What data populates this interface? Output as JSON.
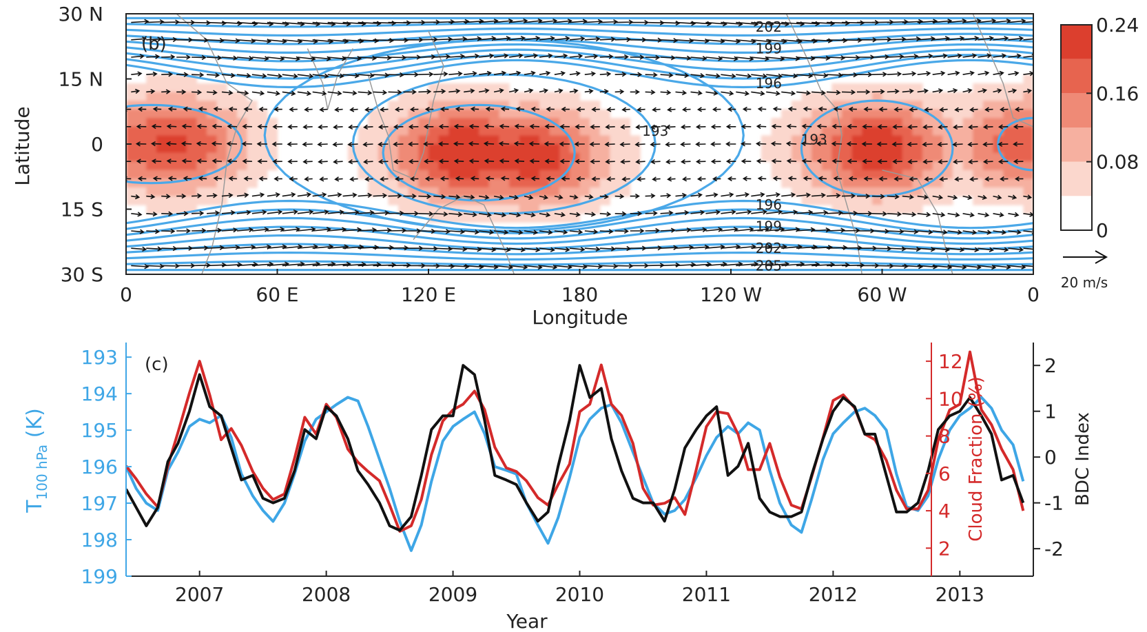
{
  "chart_data": [
    {
      "panel": "(b)",
      "type": "heatmap",
      "xlabel": "Longitude",
      "ylabel": "Latitude",
      "x_ticks": [
        "0",
        "60 E",
        "120 E",
        "180",
        "120 W",
        "60 W",
        "0"
      ],
      "x_tick_values": [
        0,
        60,
        120,
        180,
        240,
        300,
        360
      ],
      "y_ticks": [
        "30 N",
        "15 N",
        "0",
        "15 S",
        "30 S"
      ],
      "y_tick_values": [
        30,
        15,
        0,
        -15,
        -30
      ],
      "xlim": [
        0,
        360
      ],
      "ylim": [
        -30,
        30
      ],
      "colorbar": {
        "levels": [
          0,
          0.04,
          0.08,
          0.12,
          0.16,
          0.2,
          0.24
        ],
        "tick_labels": [
          "0",
          "0.08",
          "0.16",
          "0.24"
        ],
        "tick_values": [
          0,
          0.08,
          0.16,
          0.24
        ],
        "colors": [
          "#ffffff",
          "#fbd7cd",
          "#f6b0a0",
          "#ef8a76",
          "#e7644f",
          "#dc3f2e"
        ]
      },
      "cloud_maxima": [
        {
          "lon": 18,
          "lat": 0,
          "value": 0.16
        },
        {
          "lon": 135,
          "lat": -2,
          "value": 0.2
        },
        {
          "lon": 160,
          "lat": -3,
          "value": 0.18
        },
        {
          "lon": 298,
          "lat": -1,
          "value": 0.18
        },
        {
          "lon": 358,
          "lat": 0,
          "value": 0.14
        }
      ],
      "contour_color": "#4aa8e8",
      "contour_labels": [
        {
          "text": "202",
          "lon": 255,
          "lat": 27
        },
        {
          "text": "199",
          "lon": 255,
          "lat": 22
        },
        {
          "text": "196",
          "lon": 255,
          "lat": 14
        },
        {
          "text": "193",
          "lon": 210,
          "lat": 3
        },
        {
          "text": "193",
          "lon": 273,
          "lat": 1
        },
        {
          "text": "196",
          "lon": 255,
          "lat": -14
        },
        {
          "text": "199",
          "lon": 255,
          "lat": -19
        },
        {
          "text": "202",
          "lon": 255,
          "lat": -24
        },
        {
          "text": "205",
          "lon": 255,
          "lat": -28
        }
      ],
      "wind_reference": {
        "label": "20 m/s",
        "speed": 20
      }
    },
    {
      "panel": "(c)",
      "type": "line",
      "xlabel": "Year",
      "x_ticks": [
        "2007",
        "2008",
        "2009",
        "2010",
        "2011",
        "2012",
        "2013"
      ],
      "x_tick_values": [
        2007,
        2008,
        2009,
        2010,
        2011,
        2012,
        2013
      ],
      "xlim": [
        2006.42,
        2013.58
      ],
      "y_left": {
        "label_main": "T",
        "label_sub": "100 hPa",
        "label_unit": " (K)",
        "ticks": [
          "193",
          "194",
          "195",
          "196",
          "197",
          "198",
          "199"
        ],
        "tick_values": [
          193,
          194,
          195,
          196,
          197,
          198,
          199
        ],
        "lim": [
          192.6,
          199.0
        ],
        "inverted": true,
        "color": "#3ea6e6"
      },
      "y_right_1": {
        "label": "Cloud Fraction (%)",
        "ticks": [
          "2",
          "4",
          "6",
          "8",
          "10",
          "12"
        ],
        "tick_values": [
          2,
          4,
          6,
          8,
          10,
          12
        ],
        "lim": [
          0.5,
          13.0
        ],
        "color": "#d42a2a"
      },
      "y_right_2": {
        "label": "BDC Index",
        "ticks": [
          "-2",
          "-1",
          "0",
          "1",
          "2"
        ],
        "tick_values": [
          -2,
          -1,
          0,
          1,
          2
        ],
        "lim": [
          -2.6,
          2.5
        ],
        "color": "#222222"
      },
      "series": [
        {
          "axis": "left",
          "color": "#3ea6e6",
          "x": [
            2006.42,
            2006.5,
            2006.58,
            2006.67,
            2006.75,
            2006.83,
            2006.92,
            2007.0,
            2007.08,
            2007.17,
            2007.25,
            2007.33,
            2007.42,
            2007.5,
            2007.58,
            2007.67,
            2007.75,
            2007.83,
            2007.92,
            2008.0,
            2008.08,
            2008.17,
            2008.25,
            2008.33,
            2008.42,
            2008.5,
            2008.58,
            2008.67,
            2008.75,
            2008.83,
            2008.92,
            2009.0,
            2009.08,
            2009.17,
            2009.25,
            2009.33,
            2009.42,
            2009.5,
            2009.58,
            2009.67,
            2009.75,
            2009.83,
            2009.92,
            2010.0,
            2010.08,
            2010.17,
            2010.25,
            2010.33,
            2010.42,
            2010.5,
            2010.58,
            2010.67,
            2010.75,
            2010.83,
            2010.92,
            2011.0,
            2011.08,
            2011.17,
            2011.25,
            2011.33,
            2011.42,
            2011.5,
            2011.58,
            2011.67,
            2011.75,
            2011.83,
            2011.92,
            2012.0,
            2012.08,
            2012.17,
            2012.25,
            2012.33,
            2012.42,
            2012.5,
            2012.58,
            2012.67,
            2012.75,
            2012.83,
            2012.92,
            2013.0,
            2013.08,
            2013.17,
            2013.25,
            2013.33,
            2013.42,
            2013.5
          ],
          "values": [
            196.0,
            196.6,
            197.0,
            197.2,
            196.1,
            195.6,
            194.9,
            194.7,
            194.8,
            194.6,
            195.2,
            196.2,
            196.8,
            197.2,
            197.5,
            197.0,
            196.2,
            195.3,
            194.7,
            194.5,
            194.3,
            194.1,
            194.2,
            194.9,
            195.8,
            196.6,
            197.5,
            198.3,
            197.6,
            196.4,
            195.3,
            194.9,
            194.7,
            194.5,
            195.1,
            196.0,
            196.1,
            196.2,
            197.0,
            197.6,
            198.1,
            197.4,
            196.3,
            195.2,
            194.7,
            194.4,
            194.3,
            194.8,
            195.6,
            196.3,
            197.0,
            197.3,
            197.2,
            196.9,
            196.3,
            195.7,
            195.2,
            194.9,
            195.1,
            194.8,
            195.0,
            196.1,
            197.0,
            197.6,
            197.8,
            196.9,
            195.8,
            195.1,
            194.8,
            194.5,
            194.4,
            194.6,
            195.0,
            196.2,
            197.1,
            197.2,
            196.8,
            195.8,
            195.0,
            194.6,
            194.4,
            194.1,
            194.4,
            195.0,
            195.4,
            196.4
          ]
        },
        {
          "axis": "right_1",
          "color": "#d42a2a",
          "x": [
            2006.42,
            2006.5,
            2006.58,
            2006.67,
            2006.75,
            2006.83,
            2006.92,
            2007.0,
            2007.08,
            2007.17,
            2007.25,
            2007.33,
            2007.42,
            2007.5,
            2007.58,
            2007.67,
            2007.75,
            2007.83,
            2007.92,
            2008.0,
            2008.08,
            2008.17,
            2008.25,
            2008.33,
            2008.42,
            2008.5,
            2008.58,
            2008.67,
            2008.75,
            2008.83,
            2008.92,
            2009.0,
            2009.08,
            2009.17,
            2009.25,
            2009.33,
            2009.42,
            2009.5,
            2009.58,
            2009.67,
            2009.75,
            2009.83,
            2009.92,
            2010.0,
            2010.08,
            2010.17,
            2010.25,
            2010.33,
            2010.42,
            2010.5,
            2010.58,
            2010.67,
            2010.75,
            2010.83,
            2010.92,
            2011.0,
            2011.08,
            2011.17,
            2011.25,
            2011.33,
            2011.42,
            2011.5,
            2011.58,
            2011.67,
            2011.75,
            2011.83,
            2011.92,
            2012.0,
            2012.08,
            2012.17,
            2012.25,
            2012.33,
            2012.42,
            2012.5,
            2012.58,
            2012.67,
            2012.75,
            2012.83,
            2012.92,
            2013.0,
            2013.08,
            2013.17,
            2013.25,
            2013.33,
            2013.42,
            2013.5
          ],
          "values": [
            6.4,
            5.7,
            4.9,
            4.2,
            6.4,
            8.2,
            10.3,
            12.0,
            10.2,
            7.8,
            8.4,
            7.5,
            6.1,
            5.2,
            4.6,
            4.9,
            6.8,
            9.0,
            8.1,
            9.7,
            9.0,
            7.3,
            6.6,
            6.1,
            5.6,
            4.3,
            2.9,
            3.2,
            4.6,
            7.0,
            8.8,
            9.4,
            9.7,
            10.4,
            9.4,
            7.4,
            6.3,
            6.1,
            5.6,
            4.7,
            4.3,
            5.4,
            6.5,
            9.3,
            9.7,
            11.8,
            9.7,
            9.1,
            7.6,
            5.2,
            4.3,
            4.4,
            4.7,
            3.8,
            6.2,
            8.5,
            9.3,
            9.2,
            8.1,
            6.2,
            6.2,
            7.6,
            5.8,
            4.3,
            4.1,
            5.8,
            7.9,
            9.9,
            10.2,
            9.5,
            8.1,
            7.8,
            6.7,
            5.1,
            4.1,
            4.1,
            5.1,
            7.8,
            9.4,
            9.7,
            12.5,
            9.4,
            8.6,
            7.3,
            6.2,
            4.0
          ]
        },
        {
          "axis": "right_2",
          "color": "#111111",
          "x": [
            2006.42,
            2006.5,
            2006.58,
            2006.67,
            2006.75,
            2006.83,
            2006.92,
            2007.0,
            2007.08,
            2007.17,
            2007.25,
            2007.33,
            2007.42,
            2007.5,
            2007.58,
            2007.67,
            2007.75,
            2007.83,
            2007.92,
            2008.0,
            2008.08,
            2008.17,
            2008.25,
            2008.33,
            2008.42,
            2008.5,
            2008.58,
            2008.67,
            2008.75,
            2008.83,
            2008.92,
            2009.0,
            2009.08,
            2009.17,
            2009.25,
            2009.33,
            2009.42,
            2009.5,
            2009.58,
            2009.67,
            2009.75,
            2009.83,
            2009.92,
            2010.0,
            2010.08,
            2010.17,
            2010.25,
            2010.33,
            2010.42,
            2010.5,
            2010.58,
            2010.67,
            2010.75,
            2010.83,
            2010.92,
            2011.0,
            2011.08,
            2011.17,
            2011.25,
            2011.33,
            2011.42,
            2011.5,
            2011.58,
            2011.67,
            2011.75,
            2011.83,
            2011.92,
            2012.0,
            2012.08,
            2012.17,
            2012.25,
            2012.33,
            2012.42,
            2012.5,
            2012.58,
            2012.67,
            2012.75,
            2012.83,
            2012.92,
            2013.0,
            2013.08,
            2013.17,
            2013.25,
            2013.33,
            2013.42,
            2013.5
          ],
          "values": [
            -0.7,
            -1.1,
            -1.5,
            -1.1,
            -0.1,
            0.3,
            1.0,
            1.8,
            1.1,
            0.9,
            0.2,
            -0.5,
            -0.4,
            -0.9,
            -1.0,
            -0.9,
            -0.3,
            0.6,
            0.4,
            1.1,
            0.9,
            0.4,
            -0.3,
            -0.6,
            -1.0,
            -1.5,
            -1.6,
            -1.3,
            -0.4,
            0.6,
            0.9,
            0.9,
            2.0,
            1.8,
            0.8,
            -0.4,
            -0.5,
            -0.6,
            -1.0,
            -1.4,
            -1.2,
            -0.2,
            0.8,
            2.0,
            1.3,
            1.5,
            0.4,
            -0.3,
            -0.9,
            -1.0,
            -1.0,
            -1.4,
            -0.7,
            0.2,
            0.6,
            0.9,
            1.1,
            -0.4,
            -0.2,
            0.3,
            -0.9,
            -1.2,
            -1.3,
            -1.3,
            -1.2,
            -0.4,
            0.4,
            1.0,
            1.3,
            1.1,
            0.5,
            0.5,
            -0.4,
            -1.2,
            -1.2,
            -1.0,
            -0.3,
            0.6,
            0.9,
            1.0,
            1.3,
            0.9,
            0.5,
            -0.5,
            -0.4,
            -1.0
          ]
        }
      ]
    }
  ]
}
